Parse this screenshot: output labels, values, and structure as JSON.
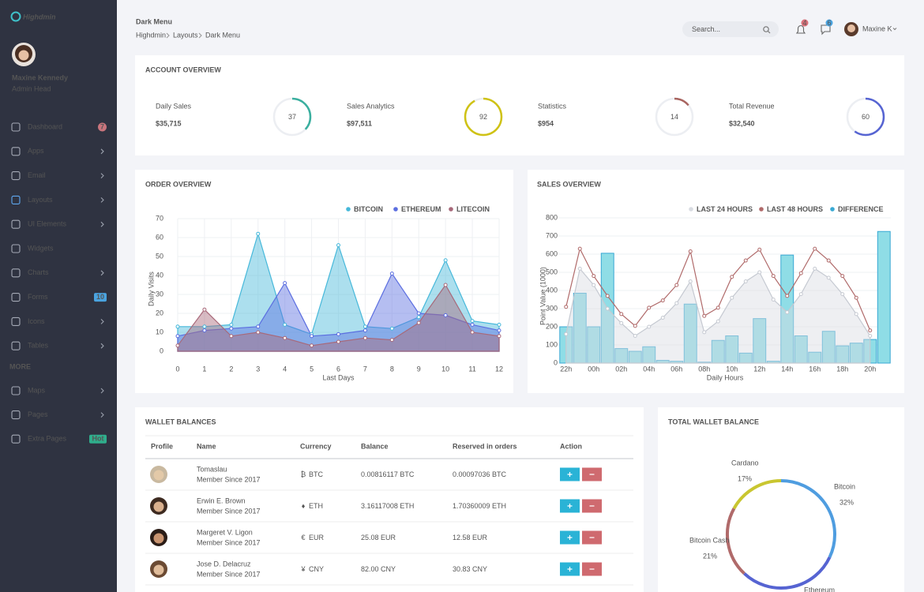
{
  "sidebar": {
    "brand": "Highdmin",
    "user_name": "Maxine Kennedy",
    "user_role": "Admin Head",
    "active": 3,
    "menu": [
      {
        "label": "Dashboard",
        "badge": "7"
      },
      {
        "label": "Apps",
        "submenu": true
      },
      {
        "label": "Email",
        "submenu": true
      },
      {
        "label": "Layouts",
        "submenu": true
      },
      {
        "label": "UI Elements",
        "submenu": true
      },
      {
        "label": "Widgets"
      },
      {
        "label": "Charts",
        "submenu": true
      },
      {
        "label": "Forms",
        "badge": "10"
      },
      {
        "label": "Icons",
        "submenu": true
      },
      {
        "label": "Tables",
        "submenu": true
      }
    ],
    "more_heading": "MORE",
    "more_menu": [
      {
        "label": "Maps",
        "submenu": true
      },
      {
        "label": "Pages",
        "submenu": true
      },
      {
        "label": "Extra Pages",
        "badge": "Hot"
      }
    ]
  },
  "header": {
    "title": "Dark Menu",
    "breadcrumb": [
      "Highdmin",
      "Layouts",
      "Dark Menu"
    ],
    "search_placeholder": "Search...",
    "notifications": "4",
    "messages": "6",
    "user": "Maxine K"
  },
  "account_overview": {
    "title": "ACCOUNT OVERVIEW",
    "items": [
      {
        "label": "Daily Sales",
        "value": "$35,715",
        "gauge": 37,
        "color": "#3aaf9f"
      },
      {
        "label": "Sales Analytics",
        "value": "$97,511",
        "gauge": 92,
        "color": "#cfc214"
      },
      {
        "label": "Statistics",
        "value": "$954",
        "gauge": 14,
        "color": "#a8645f"
      },
      {
        "label": "Total Revenue",
        "value": "$32,540",
        "gauge": 60,
        "color": "#5664d2"
      }
    ]
  },
  "chart_data": [
    {
      "type": "area",
      "title": "ORDER OVERVIEW",
      "x": [
        0,
        1,
        2,
        3,
        4,
        5,
        6,
        7,
        8,
        9,
        10,
        11,
        12
      ],
      "xlim": [
        0,
        12
      ],
      "xticks": [
        0,
        1,
        2,
        3,
        4,
        5,
        6,
        7,
        8,
        9,
        10,
        11,
        12
      ],
      "ylim": [
        0,
        70
      ],
      "yticks": [
        0,
        10,
        20,
        30,
        40,
        50,
        60,
        70
      ],
      "x_label": "Last Days",
      "y_label": "Daily Visits",
      "grid": true,
      "series": [
        {
          "name": "BITCOIN",
          "color": "#46b8da",
          "values": [
            13,
            13,
            14,
            62,
            14,
            9,
            56,
            13,
            12,
            18,
            48,
            16,
            14
          ]
        },
        {
          "name": "ETHEREUM",
          "color": "#5b6ee0",
          "values": [
            8,
            11,
            12,
            13,
            36,
            8,
            9,
            11,
            41,
            20,
            19,
            14,
            11
          ]
        },
        {
          "name": "LITECOIN",
          "color": "#a8697a",
          "values": [
            3,
            22,
            8,
            10,
            7,
            3,
            5,
            7,
            6,
            15,
            35,
            10,
            8
          ]
        }
      ]
    },
    {
      "type": "bar-line",
      "title": "SALES OVERVIEW",
      "categories": [
        "22h",
        null,
        "00h",
        null,
        "02h",
        null,
        "04h",
        null,
        "06h",
        null,
        "08h",
        null,
        "10h",
        null,
        "12h",
        null,
        "14h",
        null,
        "16h",
        null,
        "18h",
        null,
        "20h",
        null
      ],
      "ylim": [
        0,
        800
      ],
      "yticks": [
        0,
        100,
        200,
        300,
        400,
        500,
        600,
        700,
        800
      ],
      "x_label": "Daily Hours",
      "y_label": "Point Value (1000)",
      "grid": true,
      "series": [
        {
          "name": "LAST 24 HOURS",
          "color": "#d9dce2",
          "kind": "area",
          "values": [
            160,
            520,
            430,
            300,
            220,
            150,
            200,
            250,
            330,
            450,
            170,
            230,
            360,
            450,
            500,
            350,
            280,
            380,
            520,
            470,
            380,
            270,
            150,
            null
          ]
        },
        {
          "name": "LAST 48 HOURS",
          "color": "#b06a6a",
          "kind": "line",
          "values": [
            310,
            630,
            480,
            370,
            270,
            205,
            305,
            345,
            430,
            615,
            260,
            305,
            475,
            565,
            625,
            480,
            370,
            495,
            630,
            565,
            480,
            360,
            180,
            null
          ]
        },
        {
          "name": "DIFFERENCE",
          "color": "#39a9d4",
          "kind": "bar",
          "values": [
            200,
            385,
            200,
            605,
            80,
            65,
            90,
            15,
            10,
            325,
            5,
            125,
            150,
            55,
            245,
            10,
            595,
            150,
            60,
            175,
            95,
            110,
            130,
            725
          ]
        }
      ]
    },
    {
      "type": "donut",
      "title": "TOTAL WALLET BALANCE",
      "categories": [
        "Bitcoin",
        "Ethereum",
        "Bitcoin Cash",
        "Cardano"
      ],
      "values": [
        32,
        30,
        21,
        17
      ],
      "value_labels": [
        "32%",
        null,
        "21%",
        "17%"
      ],
      "colors": [
        "#4f9de0",
        "#5664d2",
        "#b06a6a",
        "#c9c630"
      ]
    }
  ],
  "wallet": {
    "title": "WALLET BALANCES",
    "columns": [
      "Profile",
      "Name",
      "Currency",
      "Balance",
      "Reserved in orders",
      "Action"
    ],
    "rows": [
      {
        "name": "Tomaslau",
        "since": "Member Since 2017",
        "symbol": "₿",
        "currency": "BTC",
        "balance": "0.00816117 BTC",
        "reserved": "0.00097036 BTC"
      },
      {
        "name": "Erwin E. Brown",
        "since": "Member Since 2017",
        "symbol": "♦",
        "currency": "ETH",
        "balance": "3.16117008 ETH",
        "reserved": "1.70360009 ETH"
      },
      {
        "name": "Margeret V. Ligon",
        "since": "Member Since 2017",
        "symbol": "€",
        "currency": "EUR",
        "balance": "25.08 EUR",
        "reserved": "12.58 EUR"
      },
      {
        "name": "Jose D. Delacruz",
        "since": "Member Since 2017",
        "symbol": "¥",
        "currency": "CNY",
        "balance": "82.00 CNY",
        "reserved": "30.83 CNY"
      }
    ]
  }
}
